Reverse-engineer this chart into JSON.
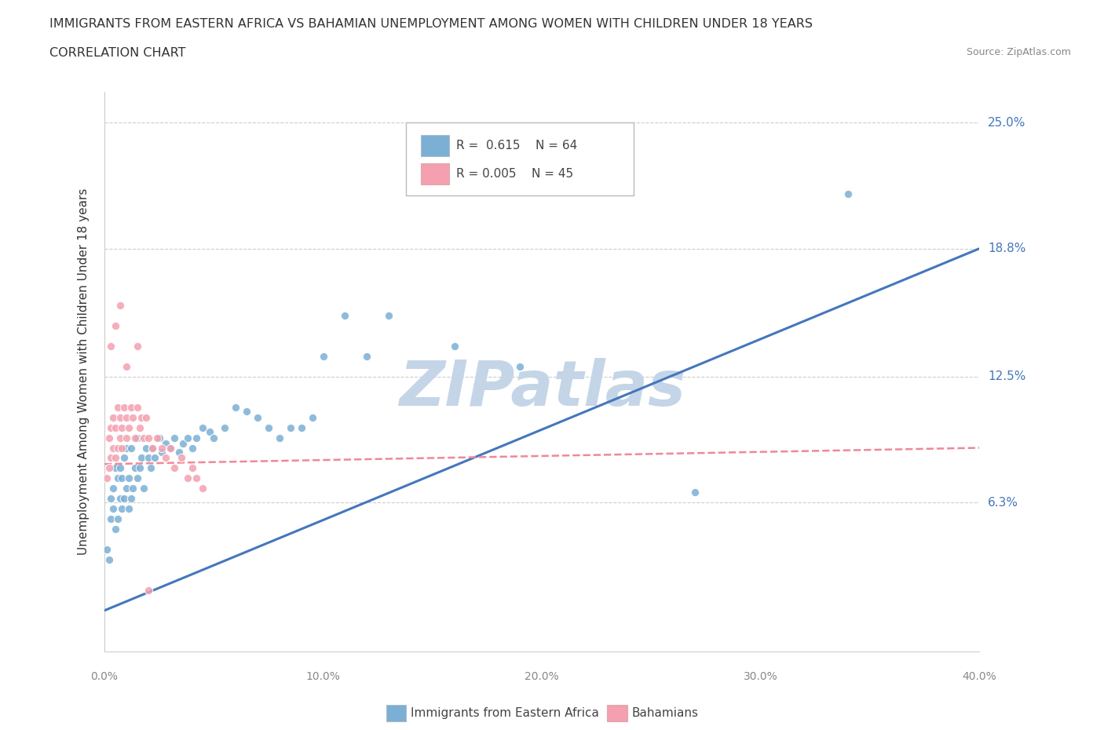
{
  "title1": "IMMIGRANTS FROM EASTERN AFRICA VS BAHAMIAN UNEMPLOYMENT AMONG WOMEN WITH CHILDREN UNDER 18 YEARS",
  "title2": "CORRELATION CHART",
  "source": "Source: ZipAtlas.com",
  "ylabel": "Unemployment Among Women with Children Under 18 years",
  "legend_label1": "Immigrants from Eastern Africa",
  "legend_label2": "Bahamians",
  "R1": "0.615",
  "N1": "64",
  "R2": "0.005",
  "N2": "45",
  "xlim": [
    0.0,
    0.4
  ],
  "ylim": [
    -0.01,
    0.265
  ],
  "ytick_vals": [
    0.063,
    0.125,
    0.188,
    0.25
  ],
  "ytick_labels": [
    "6.3%",
    "12.5%",
    "18.8%",
    "25.0%"
  ],
  "xtick_vals": [
    0.0,
    0.1,
    0.2,
    0.3,
    0.4
  ],
  "xtick_labels": [
    "0.0%",
    "10.0%",
    "20.0%",
    "30.0%",
    "40.0%"
  ],
  "color_blue": "#7BAFD4",
  "color_pink": "#F4A0B0",
  "color_blue_line": "#4477BB",
  "color_pink_line": "#EE8899",
  "color_grid": "#CCCCCC",
  "watermark": "ZIPatlas",
  "watermark_color": "#C5D5E8",
  "blue_line_x": [
    0.0,
    0.4
  ],
  "blue_line_y": [
    0.01,
    0.188
  ],
  "pink_line_x": [
    0.0,
    0.4
  ],
  "pink_line_y": [
    0.082,
    0.09
  ],
  "blue_scatter_x": [
    0.001,
    0.002,
    0.003,
    0.003,
    0.004,
    0.004,
    0.005,
    0.005,
    0.006,
    0.006,
    0.007,
    0.007,
    0.008,
    0.008,
    0.009,
    0.009,
    0.01,
    0.01,
    0.011,
    0.011,
    0.012,
    0.012,
    0.013,
    0.014,
    0.015,
    0.015,
    0.016,
    0.017,
    0.018,
    0.019,
    0.02,
    0.021,
    0.022,
    0.023,
    0.025,
    0.026,
    0.028,
    0.03,
    0.032,
    0.034,
    0.036,
    0.038,
    0.04,
    0.042,
    0.045,
    0.048,
    0.05,
    0.055,
    0.06,
    0.065,
    0.07,
    0.075,
    0.08,
    0.085,
    0.09,
    0.095,
    0.1,
    0.11,
    0.12,
    0.13,
    0.16,
    0.19,
    0.27,
    0.34
  ],
  "blue_scatter_y": [
    0.04,
    0.035,
    0.055,
    0.065,
    0.06,
    0.07,
    0.05,
    0.08,
    0.055,
    0.075,
    0.065,
    0.08,
    0.06,
    0.075,
    0.065,
    0.085,
    0.07,
    0.09,
    0.075,
    0.06,
    0.065,
    0.09,
    0.07,
    0.08,
    0.075,
    0.095,
    0.08,
    0.085,
    0.07,
    0.09,
    0.085,
    0.08,
    0.09,
    0.085,
    0.095,
    0.088,
    0.092,
    0.09,
    0.095,
    0.088,
    0.092,
    0.095,
    0.09,
    0.095,
    0.1,
    0.098,
    0.095,
    0.1,
    0.11,
    0.108,
    0.105,
    0.1,
    0.095,
    0.1,
    0.1,
    0.105,
    0.135,
    0.155,
    0.135,
    0.155,
    0.14,
    0.13,
    0.068,
    0.215
  ],
  "pink_scatter_x": [
    0.001,
    0.002,
    0.002,
    0.003,
    0.003,
    0.004,
    0.004,
    0.005,
    0.005,
    0.006,
    0.006,
    0.007,
    0.007,
    0.008,
    0.008,
    0.009,
    0.01,
    0.01,
    0.011,
    0.012,
    0.013,
    0.014,
    0.015,
    0.016,
    0.017,
    0.018,
    0.019,
    0.02,
    0.022,
    0.024,
    0.026,
    0.028,
    0.03,
    0.032,
    0.035,
    0.038,
    0.04,
    0.042,
    0.045,
    0.003,
    0.005,
    0.007,
    0.01,
    0.015,
    0.02
  ],
  "pink_scatter_y": [
    0.075,
    0.08,
    0.095,
    0.085,
    0.1,
    0.09,
    0.105,
    0.085,
    0.1,
    0.09,
    0.11,
    0.095,
    0.105,
    0.09,
    0.1,
    0.11,
    0.095,
    0.105,
    0.1,
    0.11,
    0.105,
    0.095,
    0.11,
    0.1,
    0.105,
    0.095,
    0.105,
    0.095,
    0.09,
    0.095,
    0.09,
    0.085,
    0.09,
    0.08,
    0.085,
    0.075,
    0.08,
    0.075,
    0.07,
    0.14,
    0.15,
    0.16,
    0.13,
    0.14,
    0.02
  ]
}
